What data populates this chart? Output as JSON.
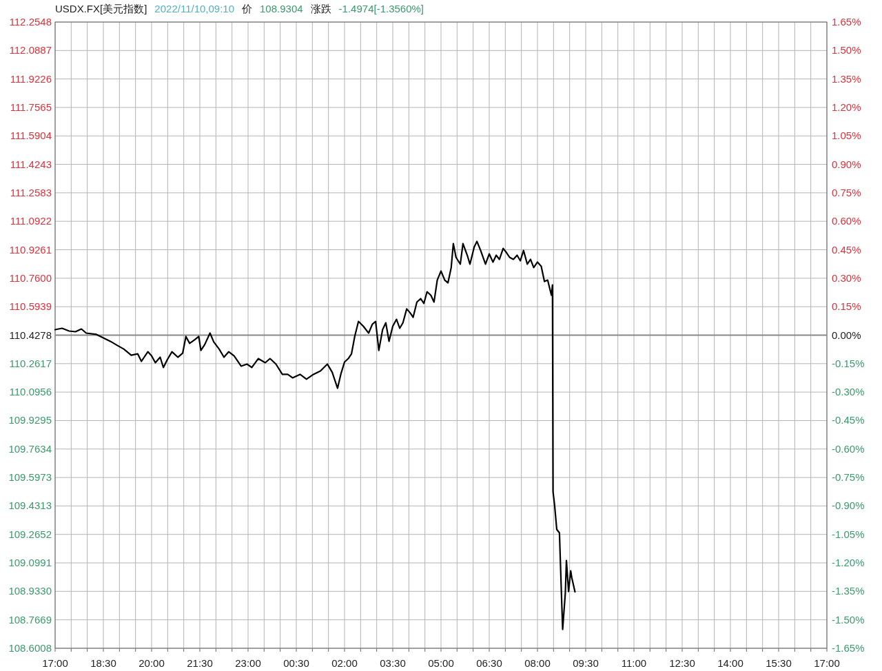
{
  "chart_data": {
    "type": "line",
    "title": "USDX.FX[美元指数]",
    "annotations": [
      "2022/11/10,09:10",
      "价",
      "108.9304",
      "涨跌",
      "-1.4974[-1.3560%]"
    ],
    "xlim": [
      "2022-11-09T17:00",
      "2022-11-10T17:00"
    ],
    "xticks": [
      {
        "value": "2022-11-09T17:00",
        "label": "17:00"
      },
      {
        "value": "2022-11-09T17:30",
        "label": null
      },
      {
        "value": "2022-11-09T18:00",
        "label": null
      },
      {
        "value": "2022-11-09T18:30",
        "label": "18:30"
      },
      {
        "value": "2022-11-09T19:00",
        "label": null
      },
      {
        "value": "2022-11-09T19:30",
        "label": null
      },
      {
        "value": "2022-11-09T20:00",
        "label": "20:00"
      },
      {
        "value": "2022-11-09T20:30",
        "label": null
      },
      {
        "value": "2022-11-09T21:00",
        "label": null
      },
      {
        "value": "2022-11-09T21:30",
        "label": "21:30"
      },
      {
        "value": "2022-11-09T22:00",
        "label": null
      },
      {
        "value": "2022-11-09T22:30",
        "label": null
      },
      {
        "value": "2022-11-09T23:00",
        "label": "23:00"
      },
      {
        "value": "2022-11-09T23:30",
        "label": null
      },
      {
        "value": "2022-11-10T00:00",
        "label": null
      },
      {
        "value": "2022-11-10T00:30",
        "label": "00:30"
      },
      {
        "value": "2022-11-10T01:00",
        "label": null
      },
      {
        "value": "2022-11-10T01:30",
        "label": null
      },
      {
        "value": "2022-11-10T02:00",
        "label": "02:00"
      },
      {
        "value": "2022-11-10T02:30",
        "label": null
      },
      {
        "value": "2022-11-10T03:00",
        "label": null
      },
      {
        "value": "2022-11-10T03:30",
        "label": "03:30"
      },
      {
        "value": "2022-11-10T04:00",
        "label": null
      },
      {
        "value": "2022-11-10T04:30",
        "label": null
      },
      {
        "value": "2022-11-10T05:00",
        "label": "05:00"
      },
      {
        "value": "2022-11-10T05:30",
        "label": null
      },
      {
        "value": "2022-11-10T06:00",
        "label": null
      },
      {
        "value": "2022-11-10T06:30",
        "label": "06:30"
      },
      {
        "value": "2022-11-10T07:00",
        "label": null
      },
      {
        "value": "2022-11-10T07:30",
        "label": null
      },
      {
        "value": "2022-11-10T08:00",
        "label": "08:00"
      },
      {
        "value": "2022-11-10T08:30",
        "label": null
      },
      {
        "value": "2022-11-10T09:00",
        "label": null
      },
      {
        "value": "2022-11-10T09:30",
        "label": "09:30"
      },
      {
        "value": "2022-11-10T10:00",
        "label": null
      },
      {
        "value": "2022-11-10T10:30",
        "label": null
      },
      {
        "value": "2022-11-10T11:00",
        "label": "11:00"
      },
      {
        "value": "2022-11-10T11:30",
        "label": null
      },
      {
        "value": "2022-11-10T12:00",
        "label": null
      },
      {
        "value": "2022-11-10T12:30",
        "label": "12:30"
      },
      {
        "value": "2022-11-10T13:00",
        "label": null
      },
      {
        "value": "2022-11-10T13:30",
        "label": null
      },
      {
        "value": "2022-11-10T14:00",
        "label": "14:00"
      },
      {
        "value": "2022-11-10T14:30",
        "label": null
      },
      {
        "value": "2022-11-10T15:00",
        "label": null
      },
      {
        "value": "2022-11-10T15:30",
        "label": "15:30"
      },
      {
        "value": "2022-11-10T16:00",
        "label": null
      },
      {
        "value": "2022-11-10T16:30",
        "label": null
      },
      {
        "value": "2022-11-10T17:00",
        "label": "17:00"
      }
    ],
    "ylim": [
      108.6008,
      112.2548
    ],
    "yticks": [
      108.6008,
      108.7669,
      {
        "value": 108.933,
        "label": "108.9330"
      },
      109.0991,
      109.2652,
      109.4313,
      109.5973,
      109.7634,
      109.9295,
      110.0956,
      110.2617,
      110.4278,
      110.5939,
      {
        "value": 110.76,
        "label": "110.7600"
      },
      110.9261,
      111.0922,
      111.2583,
      111.4243,
      111.5904,
      111.7565,
      111.9226,
      112.0887,
      112.2548
    ],
    "y2lim": [
      -1.65,
      1.65
    ],
    "y2ticks": [
      {
        "value": -1.65,
        "label": "-1.65%"
      },
      {
        "value": -1.5,
        "label": "-1.50%"
      },
      {
        "value": -1.35,
        "label": "-1.35%"
      },
      {
        "value": -1.2,
        "label": "-1.20%"
      },
      {
        "value": -1.05,
        "label": "-1.05%"
      },
      {
        "value": -0.9,
        "label": "-0.90%"
      },
      {
        "value": -0.75,
        "label": "-0.75%"
      },
      {
        "value": -0.6,
        "label": "-0.60%"
      },
      {
        "value": -0.45,
        "label": "-0.45%"
      },
      {
        "value": -0.3,
        "label": "-0.30%"
      },
      {
        "value": -0.15,
        "label": "-0.15%"
      },
      {
        "value": 0,
        "label": "0.00%"
      },
      {
        "value": 0.15,
        "label": "0.15%"
      },
      {
        "value": 0.3,
        "label": "0.30%"
      },
      {
        "value": 0.45,
        "label": "0.45%"
      },
      {
        "value": 0.6,
        "label": "0.60%"
      },
      {
        "value": 0.75,
        "label": "0.75%"
      },
      {
        "value": 0.9,
        "label": "0.90%"
      },
      {
        "value": 1.05,
        "label": "1.05%"
      },
      {
        "value": 1.2,
        "label": "1.20%"
      },
      {
        "value": 1.35,
        "label": "1.35%"
      },
      {
        "value": 1.5,
        "label": "1.50%"
      },
      {
        "value": 1.65,
        "label": "1.65%"
      }
    ],
    "grid": true,
    "ref_lines": [
      {
        "axis": "y",
        "value": 110.4278,
        "color": "#888888"
      }
    ],
    "series": [
      {
        "color": "#000000",
        "x": [
          "2022-11-09T17:00",
          "2022-11-09T17:13",
          "2022-11-09T17:26",
          "2022-11-09T17:38",
          "2022-11-09T17:49",
          "2022-11-09T17:58",
          "2022-11-09T18:17",
          "2022-11-09T18:30",
          "2022-11-09T18:43",
          "2022-11-09T18:56",
          "2022-11-09T19:08",
          "2022-11-09T19:22",
          "2022-11-09T19:34",
          "2022-11-09T19:41",
          "2022-11-09T19:53",
          "2022-11-09T20:00",
          "2022-11-09T20:07",
          "2022-11-09T20:16",
          "2022-11-09T20:22",
          "2022-11-09T20:29",
          "2022-11-09T20:38",
          "2022-11-09T20:49",
          "2022-11-09T20:58",
          "2022-11-09T21:04",
          "2022-11-09T21:11",
          "2022-11-09T21:20",
          "2022-11-09T21:28",
          "2022-11-09T21:32",
          "2022-11-09T21:39",
          "2022-11-09T21:49",
          "2022-11-09T21:56",
          "2022-11-09T22:06",
          "2022-11-09T22:15",
          "2022-11-09T22:24",
          "2022-11-09T22:34",
          "2022-11-09T22:47",
          "2022-11-09T22:58",
          "2022-11-09T23:07",
          "2022-11-09T23:19",
          "2022-11-09T23:32",
          "2022-11-09T23:41",
          "2022-11-09T23:52",
          "2022-11-10T00:04",
          "2022-11-10T00:14",
          "2022-11-10T00:23",
          "2022-11-10T00:37",
          "2022-11-10T00:49",
          "2022-11-10T01:02",
          "2022-11-10T01:15",
          "2022-11-10T01:28",
          "2022-11-10T01:37",
          "2022-11-10T01:47",
          "2022-11-10T01:53",
          "2022-11-10T02:00",
          "2022-11-10T02:07",
          "2022-11-10T02:13",
          "2022-11-10T02:19",
          "2022-11-10T02:26",
          "2022-11-10T02:35",
          "2022-11-10T02:45",
          "2022-11-10T02:52",
          "2022-11-10T02:58",
          "2022-11-10T03:04",
          "2022-11-10T03:11",
          "2022-11-10T03:17",
          "2022-11-10T03:23",
          "2022-11-10T03:30",
          "2022-11-10T03:37",
          "2022-11-10T03:43",
          "2022-11-10T03:49",
          "2022-11-10T03:56",
          "2022-11-10T04:02",
          "2022-11-10T04:08",
          "2022-11-10T04:15",
          "2022-11-10T04:22",
          "2022-11-10T04:28",
          "2022-11-10T04:34",
          "2022-11-10T04:41",
          "2022-11-10T04:47",
          "2022-11-10T04:53",
          "2022-11-10T05:00",
          "2022-11-10T05:07",
          "2022-11-10T05:13",
          "2022-11-10T05:19",
          "2022-11-10T05:23",
          "2022-11-10T05:28",
          "2022-11-10T05:36",
          "2022-11-10T05:41",
          "2022-11-10T05:49",
          "2022-11-10T05:54",
          "2022-11-10T06:02",
          "2022-11-10T06:07",
          "2022-11-10T06:14",
          "2022-11-10T06:23",
          "2022-11-10T06:30",
          "2022-11-10T06:37",
          "2022-11-10T06:43",
          "2022-11-10T06:49",
          "2022-11-10T06:56",
          "2022-11-10T07:02",
          "2022-11-10T07:08",
          "2022-11-10T07:15",
          "2022-11-10T07:22",
          "2022-11-10T07:28",
          "2022-11-10T07:34",
          "2022-11-10T07:41",
          "2022-11-10T07:47",
          "2022-11-10T07:53",
          "2022-11-10T08:00",
          "2022-11-10T08:07",
          "2022-11-10T08:13",
          "2022-11-10T08:19",
          "2022-11-10T08:26",
          "2022-11-10T08:28",
          "2022-11-10T08:29",
          "2022-11-10T08:32",
          "2022-11-10T08:36",
          "2022-11-10T08:41",
          "2022-11-10T08:45",
          "2022-11-10T08:47",
          "2022-11-10T08:52",
          "2022-11-10T08:54",
          "2022-11-10T08:58",
          "2022-11-10T09:02",
          "2022-11-10T09:04",
          "2022-11-10T09:10"
        ],
        "values": [
          110.46,
          110.468,
          110.452,
          110.448,
          110.464,
          110.44,
          110.432,
          110.412,
          110.392,
          110.368,
          110.347,
          110.311,
          110.319,
          110.275,
          110.331,
          110.307,
          110.267,
          110.299,
          110.239,
          110.283,
          110.331,
          110.299,
          110.323,
          110.42,
          110.38,
          110.4,
          110.42,
          110.339,
          110.372,
          110.44,
          110.388,
          110.347,
          110.299,
          110.331,
          110.307,
          110.247,
          110.259,
          110.239,
          110.291,
          110.267,
          110.291,
          110.259,
          110.199,
          110.199,
          110.179,
          110.199,
          110.171,
          110.199,
          110.219,
          110.259,
          110.211,
          110.118,
          110.199,
          110.271,
          110.291,
          110.319,
          110.42,
          110.508,
          110.48,
          110.44,
          110.492,
          110.508,
          110.339,
          110.46,
          110.5,
          110.392,
          110.48,
          110.52,
          110.468,
          110.5,
          110.581,
          110.56,
          110.532,
          110.621,
          110.641,
          110.613,
          110.681,
          110.661,
          110.621,
          110.749,
          110.802,
          110.749,
          110.733,
          110.822,
          110.962,
          110.882,
          110.842,
          110.962,
          110.894,
          110.842,
          110.942,
          110.975,
          110.922,
          110.842,
          110.902,
          110.854,
          110.894,
          110.87,
          110.934,
          110.91,
          110.882,
          110.87,
          110.894,
          110.862,
          110.922,
          110.842,
          110.87,
          110.822,
          110.854,
          110.83,
          110.741,
          110.749,
          110.661,
          110.721,
          109.515,
          109.435,
          109.294,
          109.274,
          108.892,
          108.711,
          108.924,
          109.113,
          108.932,
          109.053,
          109.013,
          108.93
        ]
      }
    ]
  }
}
